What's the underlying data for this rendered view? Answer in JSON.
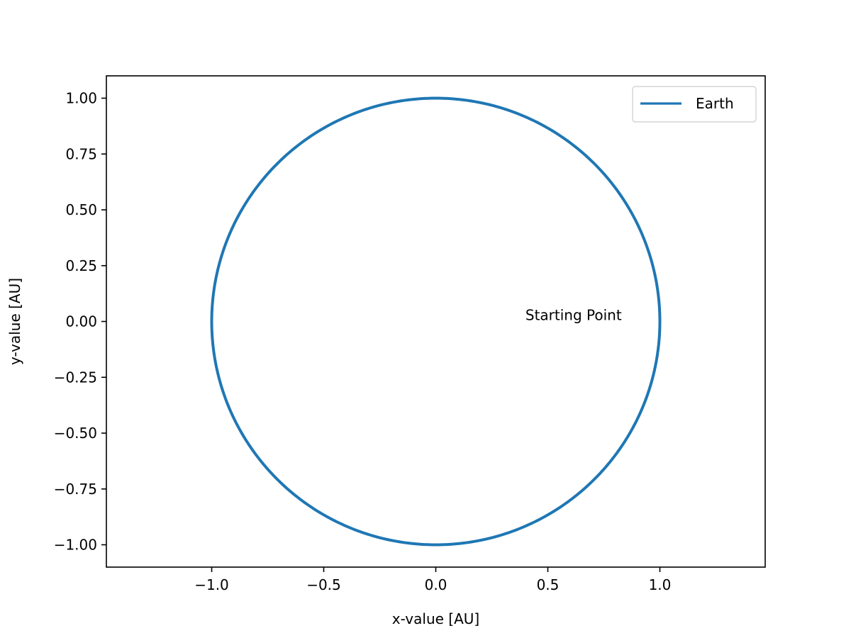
{
  "chart_data": {
    "type": "line",
    "xlabel": "x-value [AU]",
    "ylabel": "y-value [AU]",
    "xlim": [
      -1.47,
      1.47
    ],
    "ylim": [
      -1.1,
      1.1
    ],
    "xticks": [
      -1.0,
      -0.5,
      0.0,
      0.5,
      1.0
    ],
    "xtick_labels": [
      "−1.0",
      "−0.5",
      "0.0",
      "0.5",
      "1.0"
    ],
    "yticks": [
      1.0,
      0.75,
      0.5,
      0.25,
      0.0,
      -0.25,
      -0.5,
      -0.75,
      -1.0
    ],
    "ytick_labels": [
      "1.00",
      "0.75",
      "0.50",
      "0.25",
      "0.00",
      "−0.25",
      "−0.50",
      "−0.75",
      "−1.00"
    ],
    "grid": false,
    "legend_position": "top-right",
    "series": [
      {
        "name": "Earth",
        "color": "#1f77b4",
        "shape": "circle",
        "center": [
          0,
          0
        ],
        "radius": 1.0
      }
    ],
    "annotations": [
      {
        "text": "Starting Point",
        "x": 0.4,
        "y": 0.0
      }
    ]
  }
}
